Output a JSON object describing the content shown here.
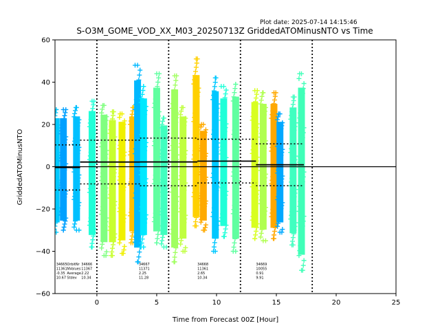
{
  "header": {
    "plot_date": "Plot date: 2025-07-14 14:15:46"
  },
  "chart_data": {
    "type": "scatter",
    "title": "S-O3M_GOME_VOD_XX_M03_20250713Z GriddedATOMinusNTO vs Time",
    "xlabel": "Time from Forecast 00Z [Hour]",
    "ylabel": "GriddedATOMinusNTO",
    "xlim": [
      -3.5,
      25
    ],
    "ylim": [
      -60,
      60
    ],
    "xticks": [
      0,
      5,
      10,
      15,
      20,
      25
    ],
    "yticks": [
      -60,
      -40,
      -20,
      0,
      20,
      40,
      60
    ],
    "grid": false,
    "colors": {
      "zero_line": "#000000",
      "mean_line": "#000000",
      "std_line": "#000000",
      "vline": "#000000"
    },
    "forecast_vlines": [
      0,
      6,
      12,
      18
    ],
    "orbit_segments": [
      {
        "x_range": [
          -3.5,
          -1.4
        ],
        "mean": -0.35,
        "stdev": 10.67
      },
      {
        "x_range": [
          -1.4,
          3.6
        ],
        "mean": 2.22,
        "stdev": 10.34
      },
      {
        "x_range": [
          3.6,
          8.4
        ],
        "mean": 2.25,
        "stdev": 11.28
      },
      {
        "x_range": [
          8.4,
          13.3
        ],
        "mean": 2.65,
        "stdev": 10.34
      },
      {
        "x_range": [
          13.3,
          17.3
        ],
        "mean": 0.91,
        "stdev": 9.91
      }
    ],
    "scatter_bands": [
      {
        "x": -3.4,
        "color": "#00c8ff",
        "ymin": -31,
        "ymax": 27
      },
      {
        "x": -2.8,
        "color": "#00a0ff",
        "ymin": -30,
        "ymax": 27
      },
      {
        "x": -1.7,
        "color": "#00c0ff",
        "ymin": -30,
        "ymax": 28
      },
      {
        "x": -0.4,
        "color": "#20ffd8",
        "ymin": -38,
        "ymax": 31
      },
      {
        "x": 0.6,
        "color": "#80ff80",
        "ymin": -42,
        "ymax": 29
      },
      {
        "x": 1.3,
        "color": "#c8ff30",
        "ymin": -42,
        "ymax": 26
      },
      {
        "x": 2.1,
        "color": "#f0f000",
        "ymin": -41,
        "ymax": 25
      },
      {
        "x": 3.0,
        "color": "#ffc000",
        "ymin": -36,
        "ymax": 28
      },
      {
        "x": 3.4,
        "color": "#00b8ff",
        "ymin": -45,
        "ymax": 48
      },
      {
        "x": 3.9,
        "color": "#00e8ff",
        "ymin": -38,
        "ymax": 38
      },
      {
        "x": 5.0,
        "color": "#60ffa0",
        "ymin": -36,
        "ymax": 44
      },
      {
        "x": 5.6,
        "color": "#40ffc0",
        "ymin": -38,
        "ymax": 23
      },
      {
        "x": 6.5,
        "color": "#a0ff60",
        "ymin": -45,
        "ymax": 43
      },
      {
        "x": 7.2,
        "color": "#c0ff40",
        "ymin": -40,
        "ymax": 28
      },
      {
        "x": 8.3,
        "color": "#ffd000",
        "ymin": -28,
        "ymax": 51
      },
      {
        "x": 8.9,
        "color": "#ffaa00",
        "ymin": -30,
        "ymax": 20
      },
      {
        "x": 9.9,
        "color": "#00c8ff",
        "ymin": -40,
        "ymax": 42
      },
      {
        "x": 10.6,
        "color": "#20ffd8",
        "ymin": -33,
        "ymax": 38
      },
      {
        "x": 11.6,
        "color": "#60ffa0",
        "ymin": -40,
        "ymax": 39
      },
      {
        "x": 13.2,
        "color": "#d8ff20",
        "ymin": -34,
        "ymax": 36
      },
      {
        "x": 13.9,
        "color": "#b0ff50",
        "ymin": -35,
        "ymax": 35
      },
      {
        "x": 14.8,
        "color": "#ffa800",
        "ymin": -34,
        "ymax": 35
      },
      {
        "x": 15.3,
        "color": "#00a8ff",
        "ymin": -31,
        "ymax": 25
      },
      {
        "x": 16.4,
        "color": "#40ffc0",
        "ymin": -37,
        "ymax": 33
      },
      {
        "x": 17.1,
        "color": "#40ffb8",
        "ymin": -49,
        "ymax": 44
      }
    ],
    "stats_header": [
      "OrbitNr",
      "NValues",
      "Average",
      "Stdev"
    ],
    "stats_columns": [
      {
        "x": -3.4,
        "lines": [
          "34665",
          "11361",
          "-0.35",
          "10.67"
        ]
      },
      {
        "x": -1.3,
        "lines": [
          "34666",
          "11367",
          "2.22",
          "10.34"
        ]
      },
      {
        "x": 3.5,
        "lines": [
          "34667",
          "11371",
          "2.25",
          "11.28"
        ]
      },
      {
        "x": 8.4,
        "lines": [
          "34668",
          "11361",
          "2.65",
          "10.34"
        ]
      },
      {
        "x": 13.3,
        "lines": [
          "34669",
          "10055",
          "0.91",
          "9.91"
        ]
      }
    ]
  }
}
